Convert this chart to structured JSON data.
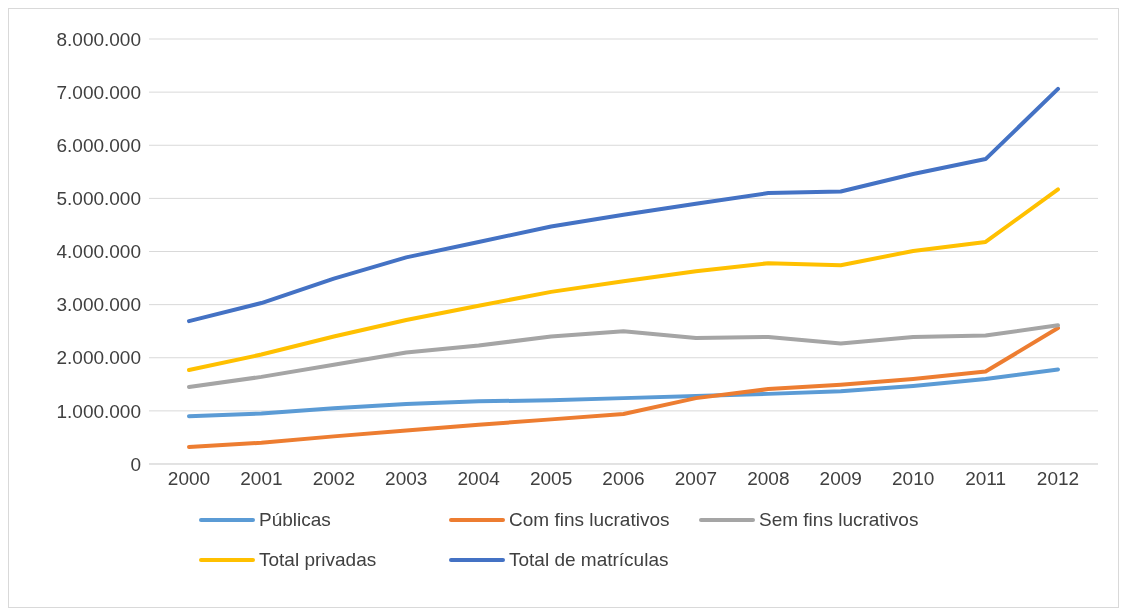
{
  "chart_data": {
    "type": "line",
    "categories": [
      "2000",
      "2001",
      "2002",
      "2003",
      "2004",
      "2005",
      "2006",
      "2007",
      "2008",
      "2009",
      "2010",
      "2011",
      "2012"
    ],
    "series": [
      {
        "name": "Públicas",
        "color": "#5b9bd5",
        "values": [
          900000,
          950000,
          1050000,
          1130000,
          1180000,
          1200000,
          1240000,
          1280000,
          1320000,
          1370000,
          1470000,
          1600000,
          1780000
        ]
      },
      {
        "name": "Com fins lucrativos",
        "color": "#ed7d31",
        "values": [
          320000,
          400000,
          520000,
          630000,
          740000,
          840000,
          940000,
          1240000,
          1410000,
          1490000,
          1600000,
          1740000,
          2560000
        ]
      },
      {
        "name": "Sem fins lucrativos",
        "color": "#a5a5a5",
        "values": [
          1450000,
          1640000,
          1870000,
          2100000,
          2230000,
          2400000,
          2500000,
          2370000,
          2390000,
          2270000,
          2390000,
          2420000,
          2610000
        ]
      },
      {
        "name": "Total privadas",
        "color": "#ffc000",
        "values": [
          1770000,
          2060000,
          2400000,
          2710000,
          2980000,
          3240000,
          3440000,
          3630000,
          3780000,
          3740000,
          4010000,
          4180000,
          5170000
        ]
      },
      {
        "name": "Total de matrículas",
        "color": "#4472c4",
        "values": [
          2690000,
          3030000,
          3490000,
          3890000,
          4180000,
          4470000,
          4690000,
          4900000,
          5100000,
          5130000,
          5460000,
          5740000,
          7060000
        ]
      }
    ],
    "ylim": [
      0,
      8000000
    ],
    "yticks": [
      {
        "value": 0,
        "label": "0"
      },
      {
        "value": 1000000,
        "label": "1.000.000"
      },
      {
        "value": 2000000,
        "label": "2.000.000"
      },
      {
        "value": 3000000,
        "label": "3.000.000"
      },
      {
        "value": 4000000,
        "label": "4.000.000"
      },
      {
        "value": 5000000,
        "label": "5.000.000"
      },
      {
        "value": 6000000,
        "label": "6.000.000"
      },
      {
        "value": 7000000,
        "label": "7.000.000"
      },
      {
        "value": 8000000,
        "label": "8.000.000"
      }
    ],
    "grid": "y",
    "legend": "bottom",
    "marker": "none",
    "line_style": "solid"
  }
}
